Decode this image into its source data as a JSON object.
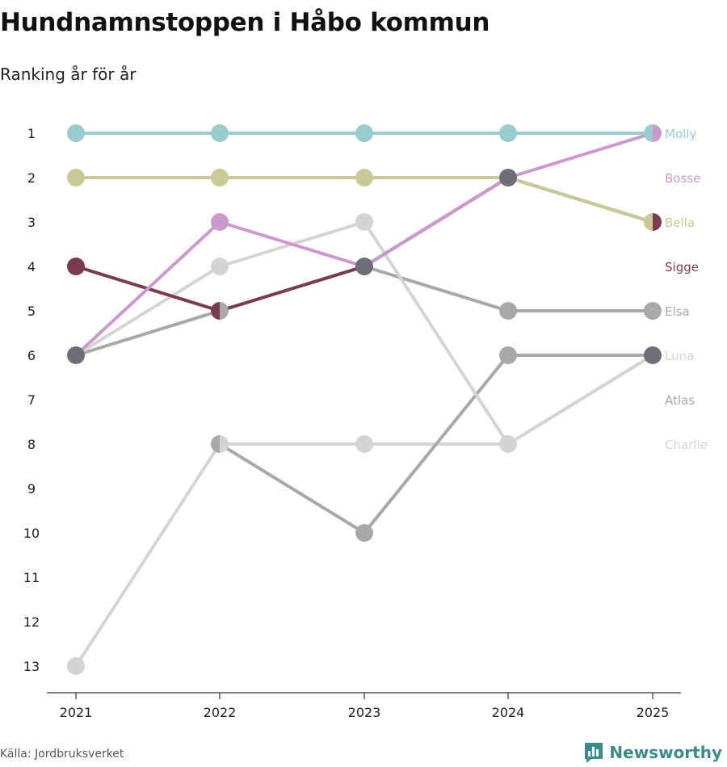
{
  "title": "Hundnamnstoppen i Håbo kommun",
  "subtitle": "Ranking år för år",
  "source": "Källa: Jordbruksverket",
  "brand": "Newsworthy",
  "chart_data": {
    "type": "line",
    "x": [
      "2021",
      "2022",
      "2023",
      "2024",
      "2025"
    ],
    "yticks": [
      "1",
      "2",
      "3",
      "4",
      "5",
      "6",
      "7",
      "8",
      "9",
      "10",
      "11",
      "12",
      "13"
    ],
    "ylim": [
      1,
      13
    ],
    "y_reversed": true,
    "series": [
      {
        "name": "Charlie",
        "color": "#d4d4d4",
        "values": [
          13,
          8,
          8,
          8,
          6
        ]
      },
      {
        "name": "Atlas",
        "color": "#a8a8a8",
        "values": [
          6,
          5,
          4,
          5,
          5
        ]
      },
      {
        "name": "Luna",
        "color": "#a8a8a8",
        "values": [
          null,
          8,
          10,
          6,
          6
        ]
      },
      {
        "name": "Elsa",
        "color": "#d4d4d4",
        "values": [
          6,
          4,
          3,
          8,
          6
        ]
      },
      {
        "name": "Sigge",
        "color": "#7a3b50",
        "values": [
          4,
          5,
          4,
          2,
          3
        ]
      },
      {
        "name": "Bella",
        "color": "#c9c996",
        "values": [
          2,
          2,
          2,
          2,
          3
        ]
      },
      {
        "name": "Bosse",
        "color": "#cc99cc",
        "values": [
          6,
          3,
          4,
          2,
          1
        ]
      },
      {
        "name": "Molly",
        "color": "#99cccc",
        "values": [
          1,
          1,
          1,
          1,
          1
        ]
      }
    ],
    "end_labels": [
      {
        "name": "Molly",
        "rank": 1,
        "color": "#99cccc"
      },
      {
        "name": "Bosse",
        "rank": 2,
        "color": "#cc99cc"
      },
      {
        "name": "Bella",
        "rank": 3,
        "color": "#c9c996"
      },
      {
        "name": "Sigge",
        "rank": 4,
        "color": "#7a3b50"
      },
      {
        "name": "Elsa",
        "rank": 5,
        "color": "#a8a8a8"
      },
      {
        "name": "Luna",
        "rank": 6,
        "color": "#d4d4d4"
      },
      {
        "name": "Atlas",
        "rank": 7,
        "color": "#a8a8a8"
      },
      {
        "name": "Charlie",
        "rank": 8,
        "color": "#d4d4d4"
      }
    ],
    "shared_point_color": "#6e6e78"
  }
}
